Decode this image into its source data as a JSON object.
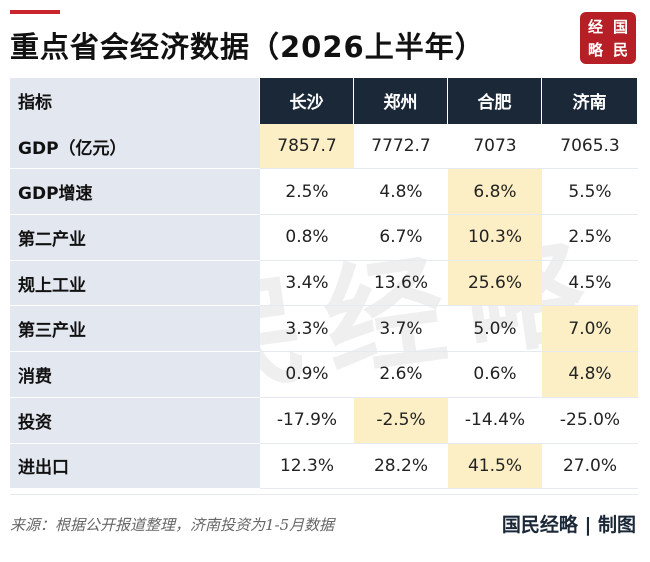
{
  "title": "重点省会经济数据（2026上半年）",
  "seal": [
    "经",
    "国",
    "略",
    "民"
  ],
  "watermark": "国民经略",
  "table": {
    "header_label": "指标",
    "columns": [
      "长沙",
      "郑州",
      "合肥",
      "济南"
    ],
    "rows": [
      {
        "label": "GDP（亿元）",
        "values": [
          "7857.7",
          "7772.7",
          "7073",
          "7065.3"
        ],
        "highlight": 0
      },
      {
        "label": "GDP增速",
        "values": [
          "2.5%",
          "4.8%",
          "6.8%",
          "5.5%"
        ],
        "highlight": 2
      },
      {
        "label": "第二产业",
        "values": [
          "0.8%",
          "6.7%",
          "10.3%",
          "2.5%"
        ],
        "highlight": 2
      },
      {
        "label": "规上工业",
        "values": [
          "3.4%",
          "13.6%",
          "25.6%",
          "4.5%"
        ],
        "highlight": 2
      },
      {
        "label": "第三产业",
        "values": [
          "3.3%",
          "3.7%",
          "5.0%",
          "7.0%"
        ],
        "highlight": 3
      },
      {
        "label": "消费",
        "values": [
          "0.9%",
          "2.6%",
          "0.6%",
          "4.8%"
        ],
        "highlight": 3
      },
      {
        "label": "投资",
        "values": [
          "-17.9%",
          "-2.5%",
          "-14.4%",
          "-25.0%"
        ],
        "highlight": 1
      },
      {
        "label": "进出口",
        "values": [
          "12.3%",
          "28.2%",
          "41.5%",
          "27.0%"
        ],
        "highlight": 2
      }
    ]
  },
  "footer": {
    "source": "来源：根据公开报道整理，济南投资为1-5月数据",
    "credit": "国民经略 | 制图"
  },
  "colors": {
    "header_bg": "#1b2838",
    "label_bg": "#e3e7f0",
    "highlight_bg": "#fcefc6",
    "accent": "#c8252c"
  }
}
